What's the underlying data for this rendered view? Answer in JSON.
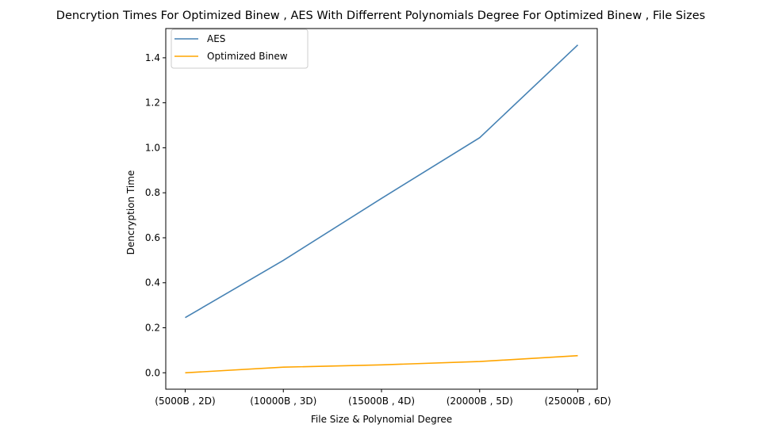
{
  "chart_data": {
    "type": "line",
    "title": "Dencrytion Times For Optimized Binew , AES With Differrent Polynomials Degree For Optimized Binew , File Sizes",
    "xlabel": "File Size & Polynomial Degree",
    "ylabel": "Dencryption Time",
    "categories": [
      "(5000B , 2D)",
      "(10000B , 3D)",
      "(15000B , 4D)",
      "(20000B , 5D)",
      "(25000B , 6D)"
    ],
    "series": [
      {
        "name": "AES",
        "color": "#4682b4",
        "values": [
          0.245,
          0.5,
          0.775,
          1.045,
          1.457
        ]
      },
      {
        "name": "Optimized Binew",
        "color": "#ffa500",
        "values": [
          0.0,
          0.025,
          0.035,
          0.05,
          0.076
        ]
      }
    ],
    "ylim": [
      -0.073,
      1.53
    ],
    "yticks": [
      0.0,
      0.2,
      0.4,
      0.6,
      0.8,
      1.0,
      1.2,
      1.4
    ],
    "ytick_labels": [
      "0.0",
      "0.2",
      "0.4",
      "0.6",
      "0.8",
      "1.0",
      "1.2",
      "1.4"
    ],
    "legend_position": "upper-left",
    "grid": false
  }
}
